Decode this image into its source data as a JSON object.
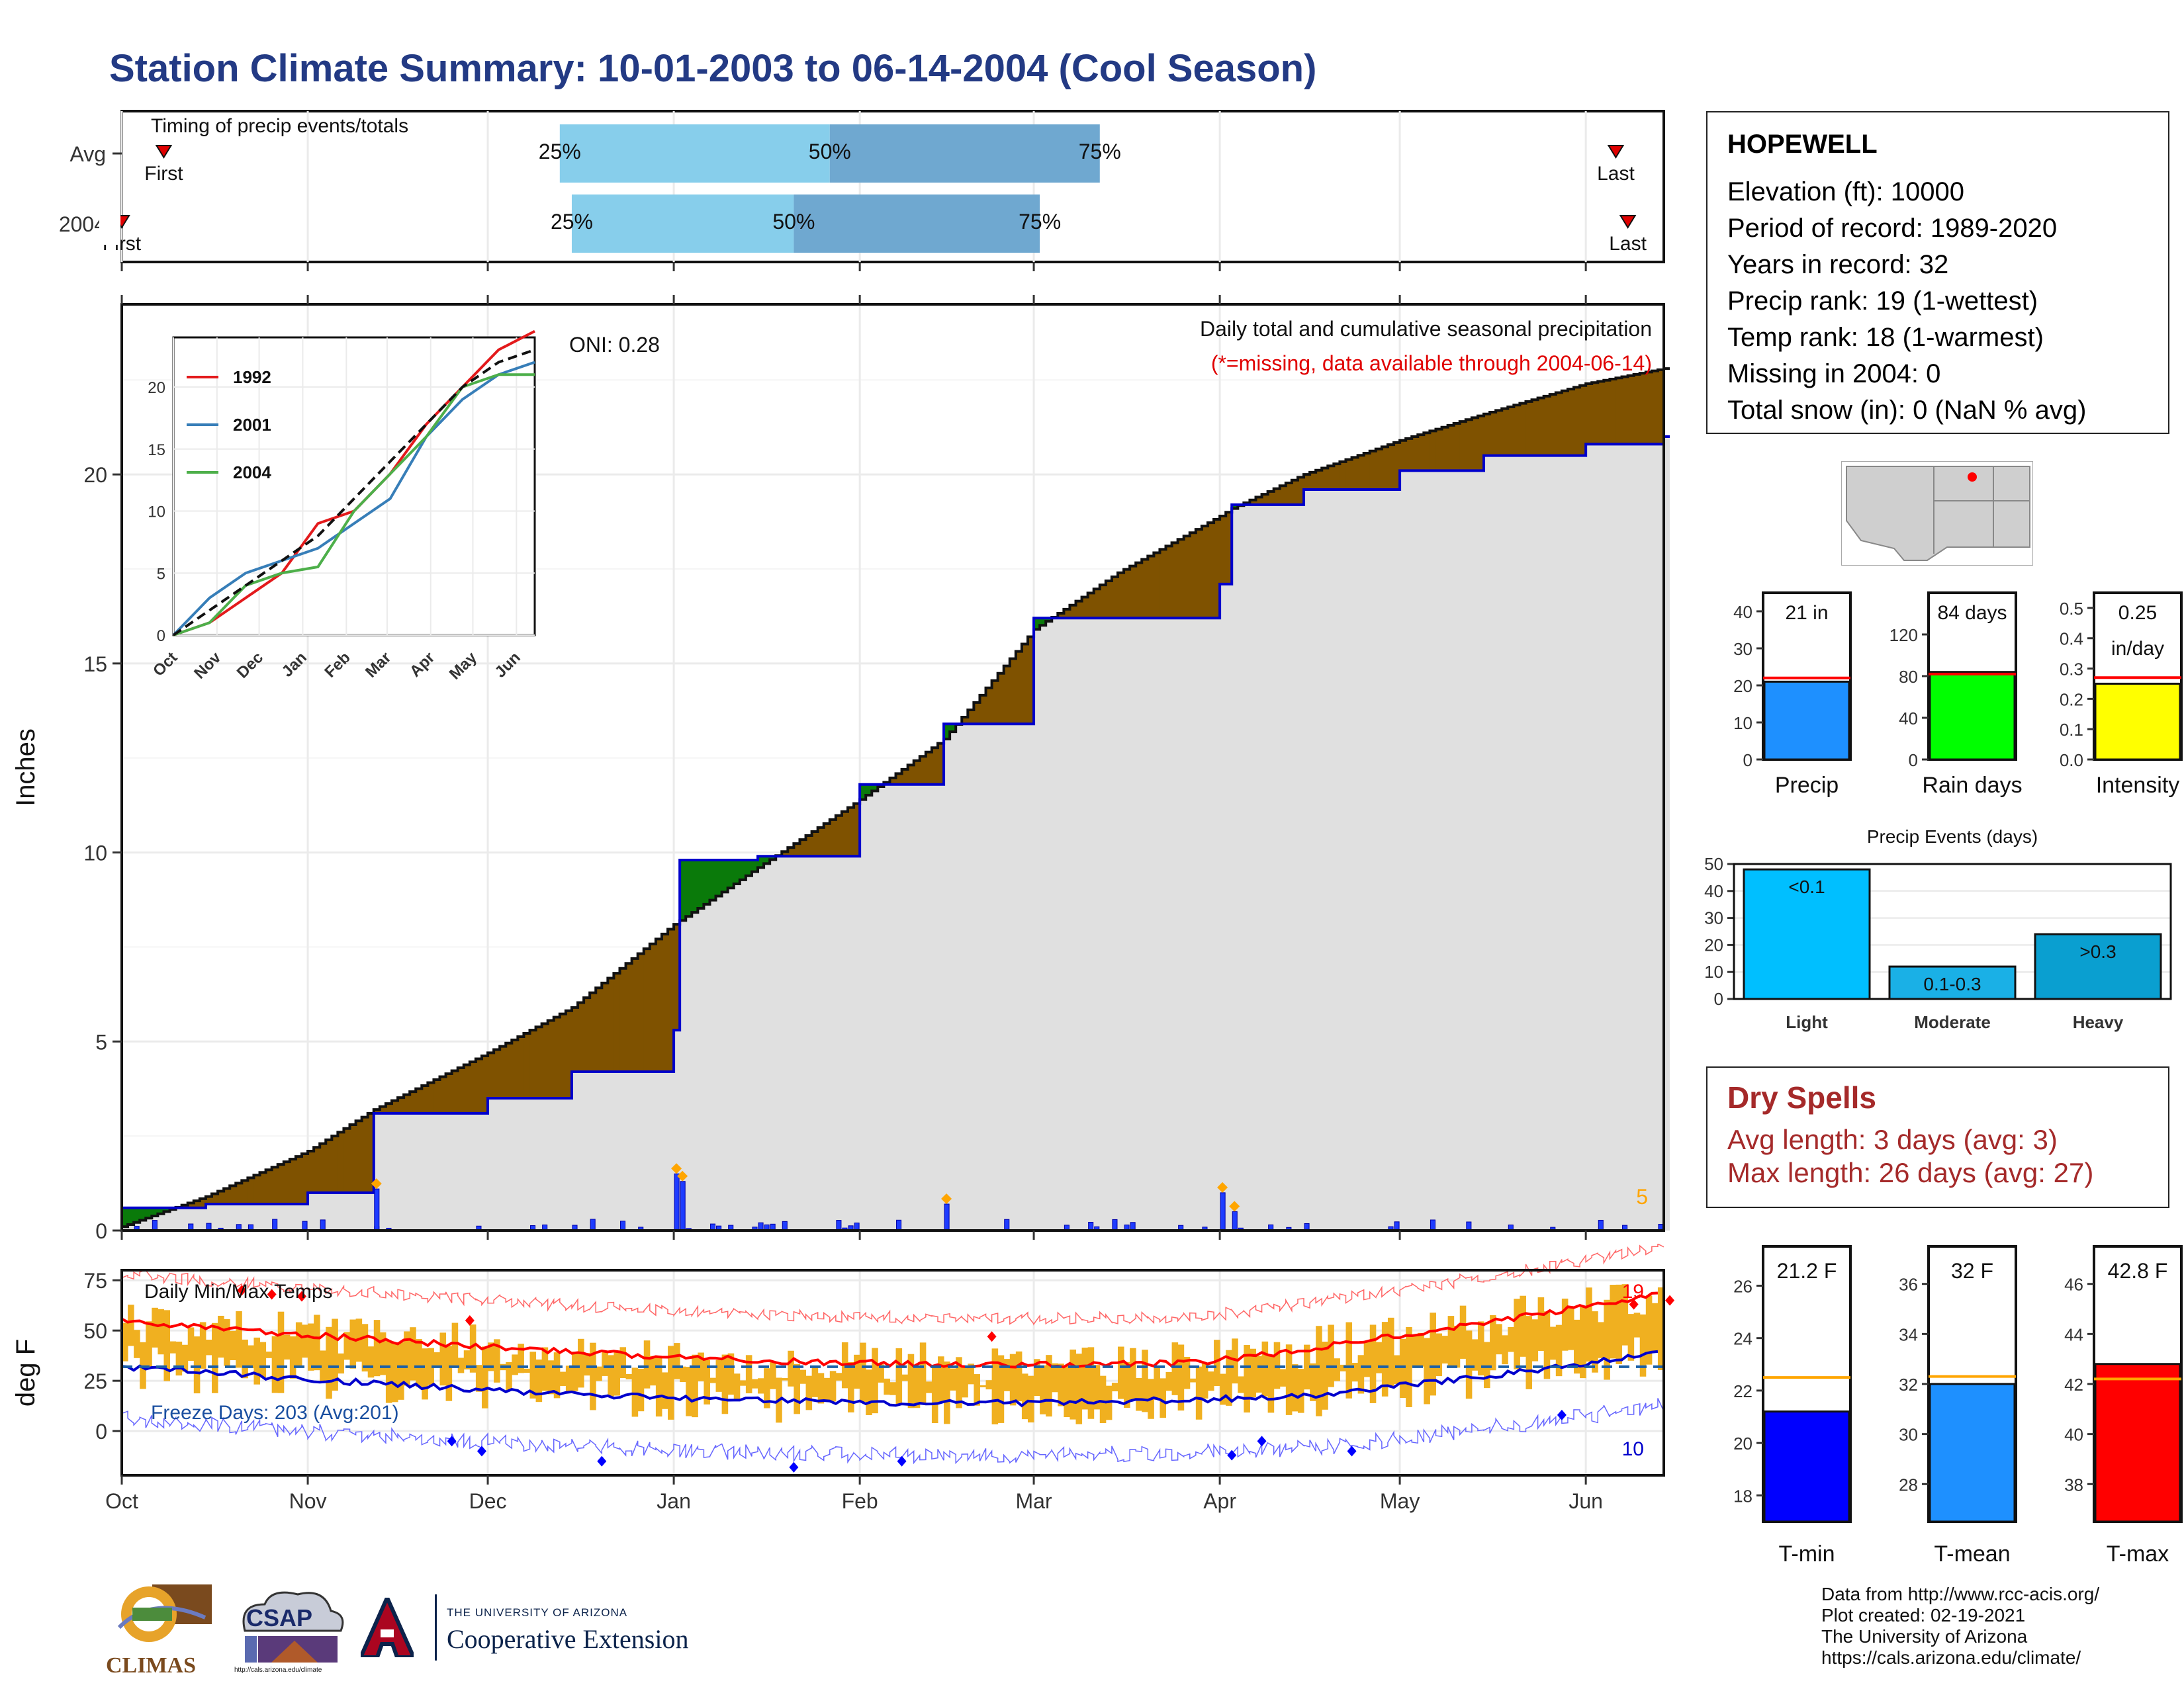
{
  "title": "Station Climate Summary: 10-01-2003 to 06-14-2004 (Cool Season)",
  "timing": {
    "label": "Timing of precip events/totals",
    "rows": [
      {
        "name": "Avg",
        "first_label": "First",
        "last_label": "Last",
        "q25": "25%",
        "q50": "50%",
        "q75": "75%",
        "first_date": "2003-10-08",
        "p25_date": "2003-12-13",
        "p50_date": "2004-01-27",
        "p75_date": "2004-03-12",
        "last_date": "2004-06-06"
      },
      {
        "name": "2004",
        "first_label": "First",
        "last_label": "Last",
        "q25": "25%",
        "q50": "50%",
        "q75": "75%",
        "first_date": "2003-10-01",
        "p25_date": "2003-12-15",
        "p50_date": "2004-01-21",
        "p75_date": "2004-03-02",
        "last_date": "2004-06-08"
      }
    ]
  },
  "main_plot": {
    "ylabel": "Inches",
    "oni": "ONI: 0.28",
    "caption": "Daily total and cumulative seasonal precipitation",
    "missing_note": "(*=missing, data available through 2004-06-14)",
    "corner_value": "5",
    "ytick_labels": [
      "0",
      "5",
      "10",
      "15",
      "20"
    ],
    "colors": {
      "avg_surplus": "#7f5200",
      "year_surplus": "#0a7a0a",
      "fill": "#e0e0e0",
      "year_line": "#0000cc",
      "avg_line": "#111111"
    }
  },
  "inset": {
    "ytick_labels": [
      "0",
      "5",
      "10",
      "15",
      "20"
    ],
    "xtick_labels": [
      "Oct",
      "Nov",
      "Dec",
      "Jan",
      "Feb",
      "Mar",
      "Apr",
      "May",
      "Jun"
    ],
    "legend": [
      {
        "name": "1992",
        "color": "#e31a1c"
      },
      {
        "name": "2001",
        "color": "#377eb8"
      },
      {
        "name": "2004",
        "color": "#4daf4a"
      }
    ]
  },
  "temps": {
    "label": "Daily Min/Max Temps",
    "ylabel": "deg F",
    "freeze": "Freeze Days: 203 (Avg:201)",
    "top_right": "19",
    "bottom_right": "10",
    "ytick_labels": [
      "0",
      "25",
      "50",
      "75"
    ],
    "xtick_labels": [
      "Oct",
      "Nov",
      "Dec",
      "Jan",
      "Feb",
      "Mar",
      "Apr",
      "May",
      "Jun"
    ]
  },
  "station": {
    "name": "HOPEWELL",
    "lines": [
      "Elevation (ft): 10000",
      "Period of record: 1989-2020",
      "Years in record: 32",
      "Precip rank: 19 (1-wettest)",
      "Temp rank: 18 (1-warmest)",
      "Missing in 2004: 0",
      "Total snow (in): 0 (NaN % avg)"
    ]
  },
  "bar_panels": [
    {
      "label": "Precip",
      "value_text": "21 in",
      "value": 21,
      "avg": 22,
      "ymax": 45,
      "ticks": [
        "0",
        "10",
        "20",
        "30",
        "40"
      ],
      "tickvals": [
        0,
        10,
        20,
        30,
        40
      ],
      "color": "#1e90ff"
    },
    {
      "label": "Rain days",
      "value_text": "84 days",
      "value": 84,
      "avg": 82,
      "ymax": 160,
      "ticks": [
        "0",
        "40",
        "80",
        "120"
      ],
      "tickvals": [
        0,
        40,
        80,
        120
      ],
      "color": "#00ff00"
    },
    {
      "label": "Intensity",
      "value_text": "0.25",
      "value_text2": "in/day",
      "value": 0.25,
      "avg": 0.27,
      "ymax": 0.55,
      "ticks": [
        "0.0",
        "0.1",
        "0.2",
        "0.3",
        "0.4",
        "0.5"
      ],
      "tickvals": [
        0,
        0.1,
        0.2,
        0.3,
        0.4,
        0.5
      ],
      "color": "#ffff00"
    }
  ],
  "precip_events": {
    "title": "Precip Events (days)",
    "ytick_labels": [
      "0",
      "10",
      "20",
      "30",
      "40",
      "50"
    ],
    "categories": [
      "Light",
      "Moderate",
      "Heavy"
    ],
    "bar_labels": [
      "<0.1",
      "0.1-0.3",
      ">0.3"
    ],
    "values": [
      48,
      12,
      24
    ],
    "colors": [
      "#00bfff",
      "#1ab0e6",
      "#0a9fd0"
    ]
  },
  "dry_spells": {
    "title": "Dry Spells",
    "avg": "Avg length: 3 days (avg: 3)",
    "max": "Max length: 26 days (avg: 27)"
  },
  "temp_panels": [
    {
      "label": "T-min",
      "value_text": "21.2 F",
      "value": 21.2,
      "avg": 22.5,
      "ymin": 17,
      "ymax": 27.5,
      "ticks": [
        "18",
        "20",
        "22",
        "24",
        "26"
      ],
      "tickvals": [
        18,
        20,
        22,
        24,
        26
      ],
      "color": "#0000ff"
    },
    {
      "label": "T-mean",
      "value_text": "32 F",
      "value": 32,
      "avg": 32.3,
      "ymin": 26.5,
      "ymax": 37.5,
      "ticks": [
        "28",
        "30",
        "32",
        "34",
        "36"
      ],
      "tickvals": [
        28,
        30,
        32,
        34,
        36
      ],
      "color": "#1e90ff"
    },
    {
      "label": "T-max",
      "value_text": "42.8 F",
      "value": 42.8,
      "avg": 42.2,
      "ymin": 36.5,
      "ymax": 47.5,
      "ticks": [
        "38",
        "40",
        "42",
        "44",
        "46"
      ],
      "tickvals": [
        38,
        40,
        42,
        44,
        46
      ],
      "color": "#ff0000"
    }
  ],
  "footer": {
    "lines": [
      "Data from http://www.rcc-acis.org/",
      "Plot created: 02-19-2021",
      "The University of Arizona",
      "https://cals.arizona.edu/climate/"
    ],
    "logo1": "CLIMAS",
    "logo2": "CSAP",
    "logo2_url": "http://cals.arizona.edu/climate",
    "ua_small": "THE UNIVERSITY OF ARIZONA",
    "ua_big": "Cooperative Extension"
  },
  "chart_data": {
    "type": "area",
    "title": "Station Climate Summary: 10-01-2003 to 06-14-2004 (Cool Season)",
    "ylabel": "Inches",
    "ylim": [
      0,
      24.5
    ],
    "x": [
      "2003-10-01",
      "2003-10-15",
      "2003-11-01",
      "2003-11-12",
      "2003-12-01",
      "2003-12-15",
      "2004-01-01",
      "2004-01-02",
      "2004-01-15",
      "2004-02-01",
      "2004-02-15",
      "2004-03-01",
      "2004-03-15",
      "2004-04-01",
      "2004-04-03",
      "2004-04-15",
      "2004-05-01",
      "2004-05-15",
      "2004-06-01",
      "2004-06-14"
    ],
    "series": [
      {
        "name": "Average cumulative",
        "values": [
          0.1,
          0.9,
          2.1,
          3.2,
          4.7,
          5.9,
          8.1,
          8.2,
          9.6,
          11.4,
          13.0,
          15.9,
          17.4,
          18.9,
          19.1,
          20.0,
          20.9,
          21.6,
          22.4,
          22.8
        ]
      },
      {
        "name": "2004 cumulative",
        "values": [
          0.6,
          0.7,
          1.0,
          3.1,
          3.5,
          4.2,
          5.3,
          9.8,
          9.9,
          11.8,
          13.4,
          16.2,
          16.2,
          17.1,
          19.2,
          19.6,
          20.1,
          20.5,
          20.8,
          21.0
        ]
      }
    ],
    "daily_precip": [
      {
        "x": "2003-11-12",
        "y": 1.1
      },
      {
        "x": "2004-01-01",
        "y": 1.5
      },
      {
        "x": "2004-01-02",
        "y": 1.3
      },
      {
        "x": "2004-02-15",
        "y": 0.7
      },
      {
        "x": "2004-04-01",
        "y": 1.0
      },
      {
        "x": "2004-04-03",
        "y": 0.5
      }
    ]
  }
}
